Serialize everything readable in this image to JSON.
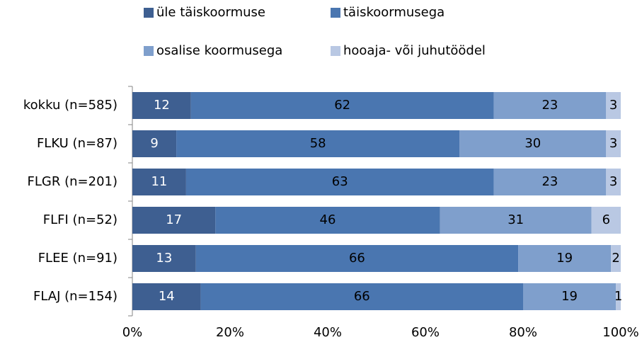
{
  "chart_data": {
    "type": "stacked_barh",
    "categories": [
      "kokku (n=585)",
      "FLKU (n=87)",
      "FLGR (n=201)",
      "FLFI (n=52)",
      "FLEE (n=91)",
      "FLAJ (n=154)"
    ],
    "series": [
      {
        "name": "üle täiskoormuse",
        "color": "#3e5f91",
        "values": [
          12,
          9,
          11,
          17,
          13,
          14
        ]
      },
      {
        "name": "täiskoormusega",
        "color": "#4a76b0",
        "values": [
          62,
          58,
          63,
          46,
          66,
          66
        ]
      },
      {
        "name": "osalise koormusega",
        "color": "#7f9fcc",
        "values": [
          23,
          30,
          23,
          31,
          19,
          19
        ]
      },
      {
        "name": "hooaja- või juhutöödel",
        "color": "#b9c8e3",
        "values": [
          3,
          3,
          3,
          6,
          2,
          1
        ]
      }
    ],
    "xlim": [
      0,
      100
    ],
    "xticks": [
      {
        "value": 0,
        "label": "0%"
      },
      {
        "value": 20,
        "label": "20%"
      },
      {
        "value": 40,
        "label": "40%"
      },
      {
        "value": 60,
        "label": "60%"
      },
      {
        "value": 80,
        "label": "80%"
      },
      {
        "value": 100,
        "label": "100%"
      }
    ],
    "legend": "top"
  }
}
